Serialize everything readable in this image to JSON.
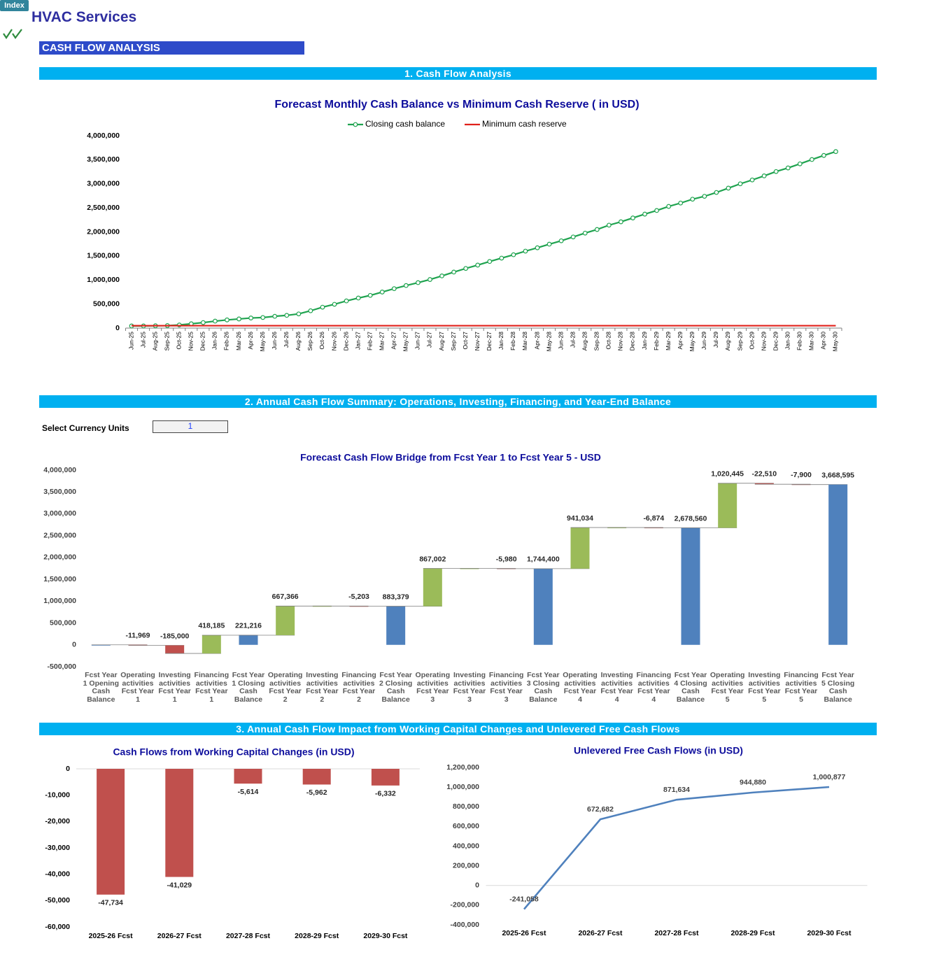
{
  "header": {
    "index_button": "Index",
    "title": "HVAC Services",
    "banner": "CASH FLOW ANALYSIS"
  },
  "sections": [
    "1. Cash Flow Analysis",
    "2. Annual Cash Flow Summary: Operations, Investing, Financing, and Year-End Balance",
    "3. Annual Cash Flow Impact from Working Capital Changes and Unlevered Free Cash Flows"
  ],
  "currency_selector": {
    "label": "Select Currency Units",
    "value": 1
  },
  "chart_data": [
    {
      "type": "line",
      "title": "Forecast Monthly Cash Balance vs Minimum Cash Reserve ( in USD)",
      "legend": "top",
      "categories": [
        "Jun-25",
        "Jul-25",
        "Aug-25",
        "Sep-25",
        "Oct-25",
        "Nov-25",
        "Dec-25",
        "Jan-26",
        "Feb-26",
        "Mar-26",
        "Apr-26",
        "May-26",
        "Jun-26",
        "Jul-26",
        "Aug-26",
        "Sep-26",
        "Oct-26",
        "Nov-26",
        "Dec-26",
        "Jan-27",
        "Feb-27",
        "Mar-27",
        "Apr-27",
        "May-27",
        "Jun-27",
        "Jul-27",
        "Aug-27",
        "Sep-27",
        "Oct-27",
        "Nov-27",
        "Dec-27",
        "Jan-28",
        "Feb-28",
        "Mar-28",
        "Apr-28",
        "May-28",
        "Jun-28",
        "Jul-28",
        "Aug-28",
        "Sep-28",
        "Oct-28",
        "Nov-28",
        "Dec-28",
        "Jan-29",
        "Feb-29",
        "Mar-29",
        "Apr-29",
        "May-29",
        "Jun-29",
        "Jul-29",
        "Aug-29",
        "Sep-29",
        "Oct-29",
        "Nov-29",
        "Dec-29",
        "Jan-30",
        "Feb-30",
        "Mar-30",
        "Apr-30",
        "May-30"
      ],
      "series": [
        {
          "name": "Closing cash balance",
          "color": "#1fa34f",
          "marker": "circle",
          "values": [
            45000,
            45000,
            48000,
            52000,
            65000,
            90000,
            115000,
            145000,
            170000,
            190000,
            210000,
            220000,
            245000,
            265000,
            295000,
            360000,
            435000,
            495000,
            565000,
            625000,
            680000,
            750000,
            820000,
            885000,
            945000,
            1010000,
            1085000,
            1165000,
            1240000,
            1310000,
            1385000,
            1455000,
            1525000,
            1600000,
            1670000,
            1745000,
            1815000,
            1895000,
            1975000,
            2050000,
            2140000,
            2210000,
            2290000,
            2370000,
            2445000,
            2530000,
            2600000,
            2680000,
            2740000,
            2820000,
            2910000,
            3000000,
            3080000,
            3165000,
            3255000,
            3330000,
            3415000,
            3505000,
            3590000,
            3670000
          ]
        },
        {
          "name": "Minimum cash reserve",
          "color": "#e0201b",
          "values": [
            50000,
            50000,
            50000,
            50000,
            50000,
            50000,
            50000,
            50000,
            50000,
            50000,
            50000,
            50000,
            50000,
            50000,
            50000,
            50000,
            50000,
            50000,
            50000,
            50000,
            50000,
            50000,
            50000,
            50000,
            50000,
            50000,
            50000,
            50000,
            50000,
            50000,
            50000,
            50000,
            50000,
            50000,
            50000,
            50000,
            50000,
            50000,
            50000,
            50000,
            50000,
            50000,
            50000,
            50000,
            50000,
            50000,
            50000,
            50000,
            50000,
            50000,
            50000,
            50000,
            50000,
            50000,
            50000,
            50000,
            50000,
            50000,
            50000,
            50000
          ]
        }
      ],
      "ylim": [
        0,
        4000000
      ],
      "yticks": [
        0,
        {
          "value": 500000,
          "label": "500,000"
        },
        {
          "value": 1000000,
          "label": "1,000,000"
        },
        {
          "value": 1500000,
          "label": "1,500,000"
        },
        {
          "value": 2000000,
          "label": "2,000,000"
        },
        {
          "value": 2500000,
          "label": "2,500,000"
        },
        {
          "value": 3000000,
          "label": "3,000,000"
        },
        {
          "value": 3500000,
          "label": "3,500,000"
        },
        {
          "value": 4000000,
          "label": "4,000,000"
        }
      ],
      "grid": false
    },
    {
      "type": "waterfall",
      "title": "Forecast Cash Flow Bridge from Fcst Year 1 to Fcst Year 5 - USD",
      "categories": [
        "Fcst Year 1 Opening Cash Balance",
        "Operating activities Fcst Year 1",
        "Investing activities Fcst Year 1",
        "Financing activities Fcst Year 1",
        "Fcst Year 1 Closing Cash Balance",
        "Operating activities Fcst Year 2",
        "Investing activities Fcst Year 2",
        "Financing activities Fcst Year 2",
        "Fcst Year 2 Closing Cash Balance",
        "Operating activities Fcst Year 3",
        "Investing activities Fcst Year 3",
        "Financing activities Fcst Year 3",
        "Fcst Year 3 Closing Cash Balance",
        "Operating activities Fcst Year 4",
        "Investing activities Fcst Year 4",
        "Financing activities Fcst Year 4",
        "Fcst Year 4 Closing Cash Balance",
        "Operating activities Fcst Year 5",
        "Investing activities Fcst Year 5",
        "Financing activities Fcst Year 5",
        "Fcst Year 5 Closing Cash Balance"
      ],
      "values": [
        0,
        -11969,
        -185000,
        418185,
        221216,
        667366,
        0,
        -5203,
        883379,
        867002,
        0,
        -5980,
        1744400,
        941034,
        0,
        -6874,
        2678560,
        1020445,
        -22510,
        -7900,
        3668595
      ],
      "value_labels": [
        null,
        "-11,969",
        "-185,000",
        "418,185",
        "221,216",
        "667,366",
        null,
        "-5,203",
        "883,379",
        "867,002",
        null,
        "-5,980",
        "1,744,400",
        "941,034",
        null,
        "-6,874",
        "2,678,560",
        "1,020,445",
        "-22,510",
        "-7,900",
        "3,668,595"
      ],
      "total_indices": [
        0,
        4,
        8,
        12,
        16,
        20
      ],
      "colors": {
        "increase": "#9bbb59",
        "decrease": "#c0504d",
        "total": "#4f81bd"
      },
      "ylim": [
        -500000,
        4000000
      ],
      "yticks": [
        {
          "value": -500000,
          "label": "-500,000"
        },
        0,
        {
          "value": 500000,
          "label": "500,000"
        },
        {
          "value": 1000000,
          "label": "1,000,000"
        },
        {
          "value": 1500000,
          "label": "1,500,000"
        },
        {
          "value": 2000000,
          "label": "2,000,000"
        },
        {
          "value": 2500000,
          "label": "2,500,000"
        },
        {
          "value": 3000000,
          "label": "3,000,000"
        },
        {
          "value": 3500000,
          "label": "3,500,000"
        },
        {
          "value": 4000000,
          "label": "4,000,000"
        }
      ],
      "grid": false
    },
    {
      "type": "bar",
      "title": "Cash Flows from Working Capital Changes (in USD)",
      "categories": [
        "2025-26 Fcst",
        "2026-27 Fcst",
        "2027-28 Fcst",
        "2028-29 Fcst",
        "2029-30 Fcst"
      ],
      "values": [
        -47734,
        -41029,
        -5614,
        -5962,
        -6332
      ],
      "value_labels": [
        "-47,734",
        "-41,029",
        "-5,614",
        "-5,962",
        "-6,332"
      ],
      "color": "#c0504d",
      "ylim": [
        -60000,
        0
      ],
      "yticks": [
        {
          "value": -60000,
          "label": "-60,000"
        },
        {
          "value": -50000,
          "label": "-50,000"
        },
        {
          "value": -40000,
          "label": "-40,000"
        },
        {
          "value": -30000,
          "label": "-30,000"
        },
        {
          "value": -20000,
          "label": "-20,000"
        },
        {
          "value": -10000,
          "label": "-10,000"
        },
        0
      ],
      "grid": false
    },
    {
      "type": "line",
      "title": "Unlevered Free Cash Flows (in USD)",
      "categories": [
        "2025-26 Fcst",
        "2026-27 Fcst",
        "2027-28 Fcst",
        "2028-29 Fcst",
        "2029-30 Fcst"
      ],
      "values": [
        -241058,
        672682,
        871634,
        944880,
        1000877
      ],
      "value_labels": [
        "-241,058",
        "672,682",
        "871,634",
        "944,880",
        "1,000,877"
      ],
      "color": "#4f81bd",
      "ylim": [
        -400000,
        1200000
      ],
      "yticks": [
        {
          "value": -400000,
          "label": "-400,000"
        },
        {
          "value": -200000,
          "label": "-200,000"
        },
        0,
        {
          "value": 200000,
          "label": "200,000"
        },
        {
          "value": 400000,
          "label": "400,000"
        },
        {
          "value": 600000,
          "label": "600,000"
        },
        {
          "value": 800000,
          "label": "800,000"
        },
        {
          "value": 1000000,
          "label": "1,000,000"
        },
        {
          "value": 1200000,
          "label": "1,200,000"
        }
      ],
      "grid": false
    }
  ]
}
